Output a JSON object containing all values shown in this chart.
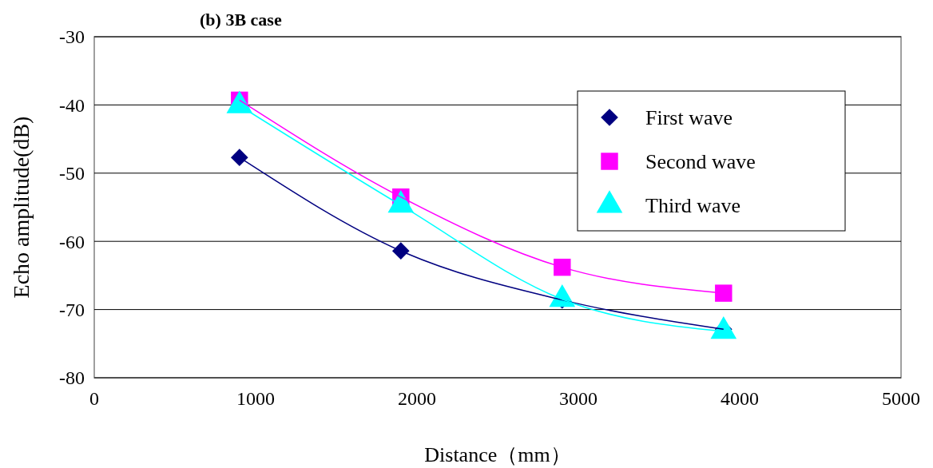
{
  "chart_data": {
    "type": "line",
    "title": "(b) 3B case",
    "xlabel": "Distance（mm）",
    "ylabel": "Echo amplitude(dB)",
    "x": [
      900,
      1900,
      2900,
      3900
    ],
    "series": [
      {
        "name": "First wave",
        "color": "#000080",
        "marker": "diamond",
        "values": [
          -47.7,
          -61.4,
          -68.6,
          -72.9
        ]
      },
      {
        "name": "Second wave",
        "color": "#ff00ff",
        "marker": "square",
        "values": [
          -39.3,
          -53.5,
          -63.8,
          -67.6
        ]
      },
      {
        "name": "Third wave",
        "color": "#00ffff",
        "marker": "triangle",
        "values": [
          -40.1,
          -54.7,
          -68.5,
          -73.2
        ]
      }
    ],
    "xlim": [
      0,
      5000
    ],
    "xticks": [
      0,
      1000,
      2000,
      3000,
      4000,
      5000
    ],
    "ylim": [
      -80,
      -30
    ],
    "yticks": [
      -80,
      -70,
      -60,
      -50,
      -40,
      -30
    ],
    "grid": "y",
    "legend": "top right",
    "line_style": "solid"
  }
}
